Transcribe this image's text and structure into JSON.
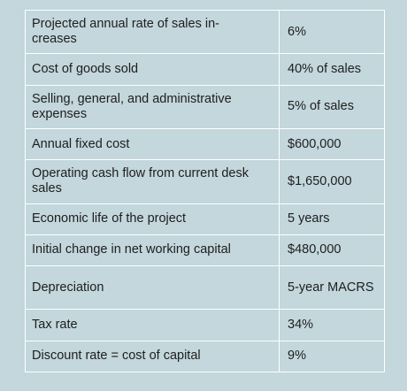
{
  "rows": [
    {
      "label": "Projected annual rate of sales in-\ncreases",
      "value": "6%"
    },
    {
      "label": "Cost of goods sold",
      "value": "40% of sales"
    },
    {
      "label": "Selling, general, and administrative expenses",
      "value": "5% of sales"
    },
    {
      "label": "Annual fixed cost",
      "value": "$600,000"
    },
    {
      "label": "Operating cash flow from current desk sales",
      "value": "$1,650,000"
    },
    {
      "label": "Economic life of the project",
      "value": "5 years"
    },
    {
      "label": "Initial change in net working capital",
      "value": "$480,000"
    },
    {
      "label": "Depreciation",
      "value": "5-year MACRS"
    },
    {
      "label": "Tax rate",
      "value": "34%"
    },
    {
      "label": "Discount rate = cost of capital",
      "value": "9%"
    }
  ]
}
